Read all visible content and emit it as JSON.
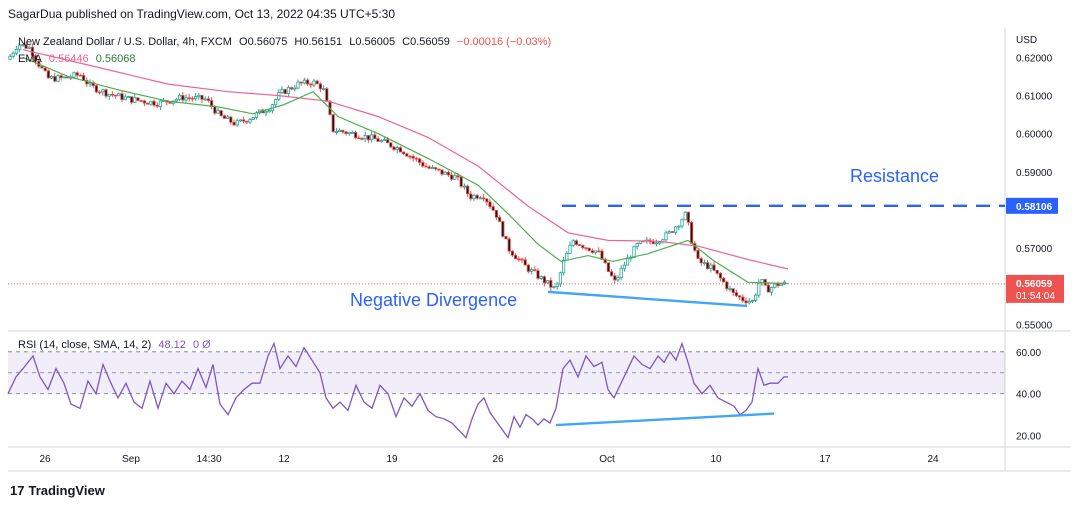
{
  "header": {
    "publisher": "SagarDua published on TradingView.com, Oct 13, 2022 04:35 UTC+5:30"
  },
  "legend": {
    "symbol": "New Zealand Dollar / U.S. Dollar, 4h, FXCM",
    "open": "O0.56075",
    "high": "H0.56151",
    "low": "L0.56005",
    "close": "C0.56059",
    "change": "−0.00016 (−0.03%)",
    "ema_label": "EMA",
    "ema_slow": "0.56446",
    "ema_fast": "0.56068",
    "rsi_label": "RSI (14, close, SMA, 14, 2)",
    "rsi_value": "48.12",
    "rsi_extra": "0  Ø"
  },
  "footer": {
    "brand": "TradingView",
    "logo": "17"
  },
  "colors": {
    "up": "#26a69a",
    "down": "#ef5350",
    "candle_body_down": "#1a1a1a",
    "ema_fast": "#4caf50",
    "ema_slow": "#f06292",
    "rsi": "#7e57c2",
    "annotation": "#2962ff",
    "divergence": "#42a5f5"
  },
  "chart_data": [
    {
      "type": "candlestick",
      "title": "New Zealand Dollar / U.S. Dollar, 4h, FXCM",
      "currency_label": "USD",
      "y_ticks": [
        0.62,
        0.61,
        0.6,
        0.59,
        0.57,
        0.55
      ],
      "y_tick_labels": [
        "0.62000",
        "0.61000",
        "0.60000",
        "0.59000",
        "0.57000",
        "0.55000"
      ],
      "ylim": [
        0.5485,
        0.6277
      ],
      "x_tick_labels": [
        "26",
        "Sep",
        "14:30",
        "12",
        "19",
        "26",
        "Oct",
        "10",
        "17",
        "24"
      ],
      "current_price": {
        "value": 0.56059,
        "label": "0.56059",
        "countdown": "01:54:04"
      },
      "resistance": {
        "value": 0.58106,
        "label": "0.58106",
        "text": "Resistance"
      },
      "divergence_text": "Negative Divergence",
      "price_anchors": [
        [
          0,
          0.6195
        ],
        [
          10,
          0.6235
        ],
        [
          22,
          0.6225
        ],
        [
          30,
          0.6185
        ],
        [
          40,
          0.6145
        ],
        [
          55,
          0.6145
        ],
        [
          72,
          0.6155
        ],
        [
          82,
          0.6125
        ],
        [
          100,
          0.6105
        ],
        [
          122,
          0.609
        ],
        [
          150,
          0.608
        ],
        [
          175,
          0.6095
        ],
        [
          198,
          0.609
        ],
        [
          212,
          0.6045
        ],
        [
          228,
          0.6025
        ],
        [
          245,
          0.6045
        ],
        [
          262,
          0.607
        ],
        [
          272,
          0.6105
        ],
        [
          290,
          0.613
        ],
        [
          305,
          0.6135
        ],
        [
          315,
          0.612
        ],
        [
          325,
          0.601
        ],
        [
          345,
          0.6
        ],
        [
          368,
          0.5985
        ],
        [
          392,
          0.596
        ],
        [
          420,
          0.591
        ],
        [
          448,
          0.5885
        ],
        [
          462,
          0.5835
        ],
        [
          475,
          0.584
        ],
        [
          488,
          0.579
        ],
        [
          500,
          0.57
        ],
        [
          518,
          0.565
        ],
        [
          533,
          0.562
        ],
        [
          548,
          0.559
        ],
        [
          555,
          0.566
        ],
        [
          565,
          0.572
        ],
        [
          580,
          0.57
        ],
        [
          590,
          0.569
        ],
        [
          600,
          0.564
        ],
        [
          607,
          0.561
        ],
        [
          617,
          0.566
        ],
        [
          630,
          0.571
        ],
        [
          648,
          0.572
        ],
        [
          660,
          0.5735
        ],
        [
          672,
          0.577
        ],
        [
          678,
          0.579
        ],
        [
          683,
          0.5725
        ],
        [
          690,
          0.5665
        ],
        [
          702,
          0.565
        ],
        [
          714,
          0.5615
        ],
        [
          725,
          0.558
        ],
        [
          735,
          0.5565
        ],
        [
          745,
          0.556
        ],
        [
          752,
          0.562
        ],
        [
          758,
          0.559
        ],
        [
          770,
          0.5605
        ],
        [
          778,
          0.5606
        ]
      ],
      "ema_fast_anchors": [
        [
          15,
          0.62
        ],
        [
          60,
          0.615
        ],
        [
          110,
          0.6115
        ],
        [
          160,
          0.6085
        ],
        [
          210,
          0.607
        ],
        [
          245,
          0.6052
        ],
        [
          275,
          0.6075
        ],
        [
          305,
          0.611
        ],
        [
          330,
          0.6045
        ],
        [
          370,
          0.6
        ],
        [
          420,
          0.5935
        ],
        [
          470,
          0.5865
        ],
        [
          500,
          0.579
        ],
        [
          530,
          0.571
        ],
        [
          553,
          0.5665
        ],
        [
          580,
          0.568
        ],
        [
          605,
          0.5665
        ],
        [
          640,
          0.5685
        ],
        [
          680,
          0.572
        ],
        [
          705,
          0.5668
        ],
        [
          740,
          0.561
        ],
        [
          780,
          0.5607
        ]
      ],
      "ema_slow_anchors": [
        [
          15,
          0.622
        ],
        [
          80,
          0.618
        ],
        [
          160,
          0.613
        ],
        [
          220,
          0.611
        ],
        [
          270,
          0.61
        ],
        [
          320,
          0.6085
        ],
        [
          370,
          0.6045
        ],
        [
          420,
          0.599
        ],
        [
          470,
          0.5915
        ],
        [
          520,
          0.581
        ],
        [
          560,
          0.574
        ],
        [
          600,
          0.572
        ],
        [
          650,
          0.5718
        ],
        [
          690,
          0.5705
        ],
        [
          740,
          0.567
        ],
        [
          780,
          0.5645
        ]
      ]
    },
    {
      "type": "line",
      "title": "RSI (14, close, SMA, 14, 2)",
      "y_ticks": [
        60,
        40,
        20
      ],
      "y_tick_labels": [
        "60.00",
        "40.00",
        "20.00"
      ],
      "ylim": [
        15,
        69
      ],
      "band": [
        40,
        60
      ],
      "midline": 50,
      "rsi_anchors": [
        [
          0,
          40
        ],
        [
          8,
          48
        ],
        [
          15,
          52
        ],
        [
          25,
          58
        ],
        [
          32,
          48
        ],
        [
          40,
          42
        ],
        [
          48,
          52
        ],
        [
          56,
          45
        ],
        [
          63,
          35
        ],
        [
          72,
          33
        ],
        [
          80,
          46
        ],
        [
          88,
          40
        ],
        [
          95,
          54
        ],
        [
          102,
          46
        ],
        [
          110,
          38
        ],
        [
          118,
          45
        ],
        [
          126,
          36
        ],
        [
          134,
          33
        ],
        [
          142,
          46
        ],
        [
          150,
          33
        ],
        [
          158,
          45
        ],
        [
          166,
          40
        ],
        [
          174,
          46
        ],
        [
          182,
          42
        ],
        [
          190,
          52
        ],
        [
          198,
          43
        ],
        [
          205,
          54
        ],
        [
          212,
          35
        ],
        [
          220,
          30
        ],
        [
          228,
          38
        ],
        [
          236,
          42
        ],
        [
          244,
          45
        ],
        [
          252,
          45
        ],
        [
          260,
          58
        ],
        [
          266,
          64
        ],
        [
          272,
          52
        ],
        [
          280,
          58
        ],
        [
          288,
          53
        ],
        [
          296,
          62
        ],
        [
          304,
          56
        ],
        [
          312,
          50
        ],
        [
          318,
          38
        ],
        [
          325,
          33
        ],
        [
          332,
          36
        ],
        [
          340,
          32
        ],
        [
          348,
          44
        ],
        [
          356,
          36
        ],
        [
          364,
          33
        ],
        [
          372,
          44
        ],
        [
          380,
          40
        ],
        [
          388,
          29
        ],
        [
          396,
          38
        ],
        [
          404,
          34
        ],
        [
          412,
          40
        ],
        [
          420,
          32
        ],
        [
          428,
          29
        ],
        [
          436,
          28
        ],
        [
          444,
          26
        ],
        [
          452,
          22
        ],
        [
          458,
          19
        ],
        [
          464,
          28
        ],
        [
          470,
          35
        ],
        [
          476,
          38
        ],
        [
          482,
          31
        ],
        [
          488,
          27
        ],
        [
          494,
          23
        ],
        [
          500,
          19
        ],
        [
          506,
          29
        ],
        [
          512,
          24
        ],
        [
          518,
          30
        ],
        [
          524,
          28
        ],
        [
          530,
          25
        ],
        [
          536,
          28
        ],
        [
          542,
          26
        ],
        [
          548,
          33
        ],
        [
          555,
          52
        ],
        [
          562,
          56
        ],
        [
          570,
          48
        ],
        [
          578,
          58
        ],
        [
          586,
          53
        ],
        [
          594,
          55
        ],
        [
          600,
          42
        ],
        [
          606,
          38
        ],
        [
          612,
          44
        ],
        [
          618,
          50
        ],
        [
          626,
          58
        ],
        [
          634,
          54
        ],
        [
          642,
          52
        ],
        [
          650,
          58
        ],
        [
          656,
          55
        ],
        [
          662,
          60
        ],
        [
          668,
          56
        ],
        [
          674,
          64
        ],
        [
          680,
          55
        ],
        [
          686,
          45
        ],
        [
          694,
          40
        ],
        [
          702,
          44
        ],
        [
          710,
          38
        ],
        [
          718,
          36
        ],
        [
          726,
          34
        ],
        [
          732,
          30
        ],
        [
          738,
          32
        ],
        [
          744,
          36
        ],
        [
          750,
          52
        ],
        [
          756,
          44
        ],
        [
          762,
          45
        ],
        [
          770,
          45
        ],
        [
          776,
          48
        ],
        [
          780,
          48
        ]
      ],
      "divergence_start": [
        548,
        25
      ],
      "divergence_end": [
        766,
        30.5
      ]
    }
  ]
}
